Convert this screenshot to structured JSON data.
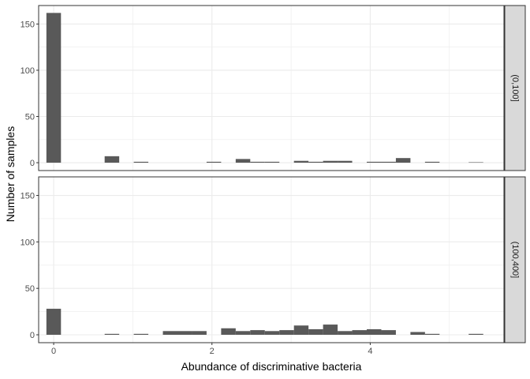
{
  "chart_data": {
    "type": "bar",
    "subtype": "histogram-faceted",
    "xlabel": "Abundance of discriminative bacteria",
    "ylabel": "Number of samples",
    "xlim": [
      -0.19,
      5.69
    ],
    "ylim": [
      -8.5,
      170
    ],
    "x_ticks": [
      0,
      2,
      4
    ],
    "x_tick_labels": [
      "0",
      "2",
      "4"
    ],
    "y_ticks": [
      0,
      50,
      100,
      150
    ],
    "y_tick_labels": [
      "0",
      "50",
      "100",
      "150"
    ],
    "bin_width": 0.184,
    "bin_start": 0,
    "colors": {
      "bar": "#595959",
      "panel_border": "#333333",
      "grid": "#ebebeb",
      "strip_fill": "#d9d9d9"
    },
    "grid": true,
    "facets": [
      {
        "label": "(0,100]",
        "counts": [
          162,
          0,
          0,
          0,
          7,
          0,
          1,
          0,
          0,
          0,
          0,
          1,
          0,
          4,
          1,
          1,
          0,
          2,
          1,
          2,
          2,
          0,
          1,
          1,
          5,
          0,
          1,
          0,
          0,
          0.5
        ]
      },
      {
        "label": "(100,400]",
        "counts": [
          28,
          0,
          0,
          0,
          1,
          0,
          1,
          0,
          4,
          4,
          4,
          0,
          7,
          4,
          5,
          4,
          5,
          10,
          6,
          11,
          4,
          5,
          6,
          5,
          0,
          3,
          1,
          0,
          0,
          1
        ]
      }
    ]
  }
}
